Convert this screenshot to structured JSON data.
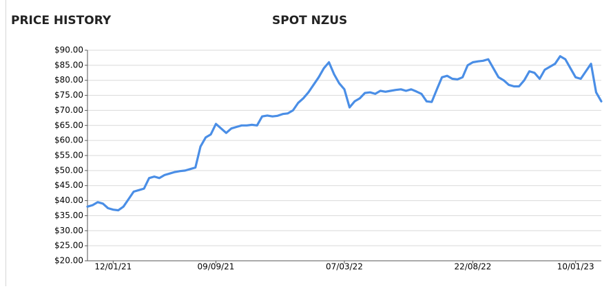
{
  "chart_data": {
    "type": "line",
    "title": "PRICE HISTORY",
    "subtitle": "SPOT NZUS",
    "categories": [
      null,
      null,
      null,
      null,
      null,
      "12/01/21",
      null,
      null,
      null,
      null,
      null,
      null,
      null,
      null,
      null,
      null,
      null,
      null,
      null,
      null,
      null,
      null,
      null,
      null,
      null,
      "09/09/21",
      null,
      null,
      null,
      null,
      null,
      null,
      null,
      null,
      null,
      null,
      null,
      null,
      null,
      null,
      null,
      null,
      null,
      null,
      null,
      null,
      null,
      null,
      null,
      null,
      "07/03/22",
      null,
      null,
      null,
      null,
      null,
      null,
      null,
      null,
      null,
      null,
      null,
      null,
      null,
      null,
      null,
      null,
      null,
      null,
      null,
      null,
      null,
      null,
      null,
      null,
      "22/08/22",
      null,
      null,
      null,
      null,
      null,
      null,
      null,
      null,
      null,
      null,
      null,
      null,
      null,
      null,
      null,
      null,
      null,
      null,
      null,
      "10/01/23",
      null,
      null,
      null,
      null,
      null
    ],
    "series": [
      {
        "name": "SPOT NZUS",
        "color": "#4a8ee6",
        "values": [
          38,
          38.5,
          39.5,
          39,
          37.5,
          37,
          36.8,
          38,
          40.5,
          43,
          43.5,
          44,
          47.5,
          48,
          47.5,
          48.5,
          49,
          49.5,
          49.8,
          50,
          50.5,
          51,
          58,
          61,
          62,
          65.5,
          64,
          62.5,
          64,
          64.5,
          65,
          65,
          65.2,
          65,
          68,
          68.3,
          68,
          68.2,
          68.8,
          69,
          70,
          72.5,
          74,
          76,
          78.5,
          81,
          84,
          86,
          82,
          79,
          77,
          71,
          73,
          74,
          75.8,
          76,
          75.5,
          76.5,
          76.2,
          76.5,
          76.8,
          77,
          76.5,
          77,
          76.3,
          75.5,
          73,
          72.8,
          77,
          81,
          81.5,
          80.5,
          80.3,
          81,
          85,
          86,
          86.3,
          86.5,
          87,
          84,
          81,
          80,
          78.5,
          78,
          78,
          80,
          83,
          82.5,
          80.5,
          83.5,
          84.5,
          85.5,
          88,
          87,
          84,
          81,
          80.5,
          83,
          85.5,
          76,
          73
        ]
      }
    ],
    "ylim": [
      20,
      90
    ],
    "yticks": [
      {
        "value": 20,
        "label": "$20.00"
      },
      {
        "value": 25,
        "label": "$25.00"
      },
      {
        "value": 30,
        "label": "$30.00"
      },
      {
        "value": 35,
        "label": "$35.00"
      },
      {
        "value": 40,
        "label": "$40.00"
      },
      {
        "value": 45,
        "label": "$45.00"
      },
      {
        "value": 50,
        "label": "$50.00"
      },
      {
        "value": 55,
        "label": "$55.00"
      },
      {
        "value": 60,
        "label": "$60.00"
      },
      {
        "value": 65,
        "label": "$65.00"
      },
      {
        "value": 70,
        "label": "$70.00"
      },
      {
        "value": 75,
        "label": "$75.00"
      },
      {
        "value": 80,
        "label": "$80.00"
      },
      {
        "value": 85,
        "label": "$85.00"
      },
      {
        "value": 90,
        "label": "$90.00"
      }
    ],
    "grid": true
  }
}
